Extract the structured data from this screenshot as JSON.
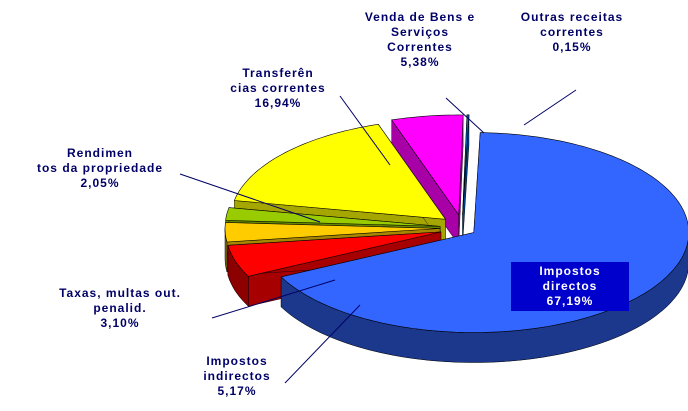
{
  "chart_data": {
    "type": "pie3d",
    "categories": [
      "Impostos directos",
      "Impostos\nindirectos",
      "Taxas, multas out.\npenalid.",
      "Rendimen\ntos da propriedade",
      "Transferên\ncias correntes",
      "Venda de Bens e\nServiços\nCorrentes",
      "Outras receitas\ncorrentes"
    ],
    "values": [
      67.19,
      5.17,
      3.1,
      2.05,
      16.94,
      5.38,
      0.15
    ],
    "value_labels": [
      "67,19%",
      "5,17%",
      "3,10%",
      "2,05%",
      "16,94%",
      "5,38%",
      "0,15%"
    ],
    "colors": [
      "#3366ff",
      "#ff0000",
      "#ffcc00",
      "#99cc00",
      "#ffff00",
      "#ff00ff",
      "#0066cc"
    ]
  }
}
